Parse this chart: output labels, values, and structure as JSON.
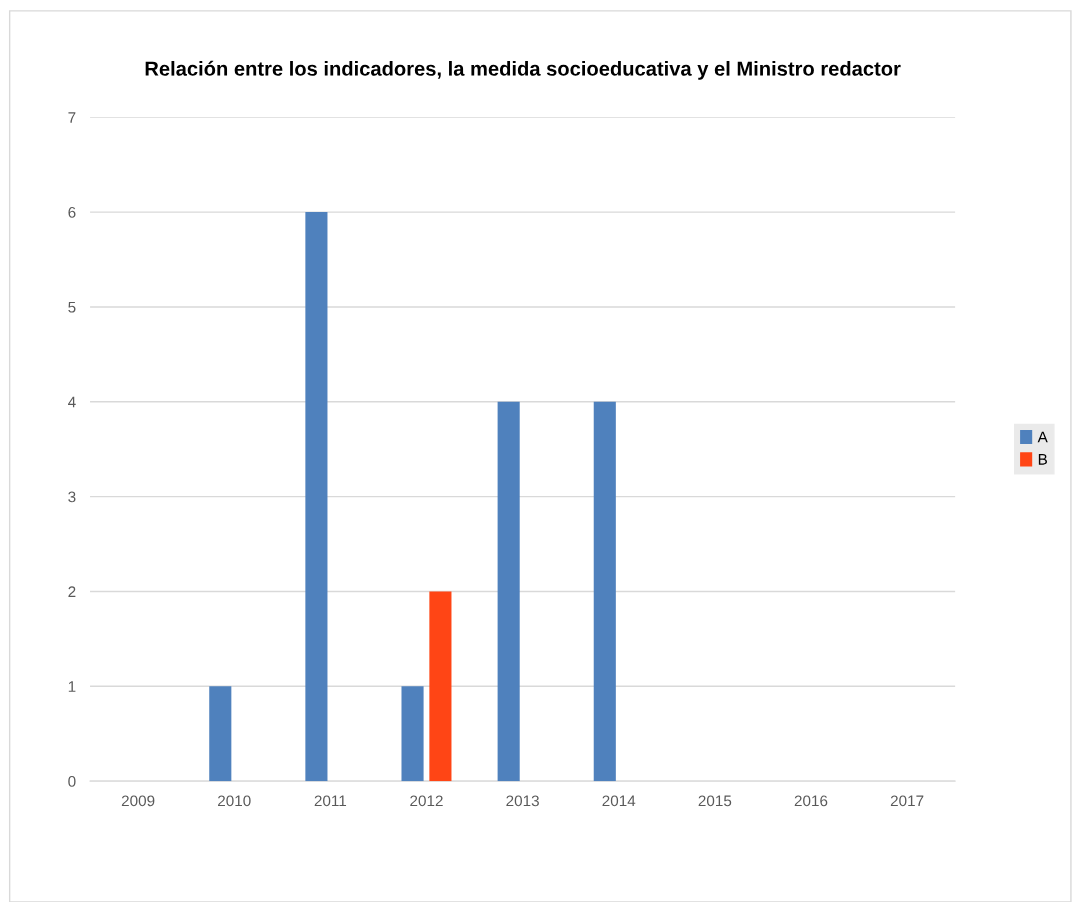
{
  "chart_data": {
    "type": "bar",
    "title": "Relación entre los indicadores, la medida socioeducativa y el Ministro redactor",
    "categories": [
      "2009",
      "2010",
      "2011",
      "2012",
      "2013",
      "2014",
      "2015",
      "2016",
      "2017"
    ],
    "series": [
      {
        "name": "A",
        "color": "#4f81bd",
        "values": [
          0,
          1,
          6,
          1,
          4,
          4,
          0,
          0,
          0
        ]
      },
      {
        "name": "B",
        "color": "#ff4515",
        "values": [
          0,
          0,
          0,
          2,
          0,
          0,
          0,
          0,
          0
        ]
      }
    ],
    "ylim": [
      0,
      7
    ],
    "yticks": [
      0,
      1,
      2,
      3,
      4,
      5,
      6,
      7
    ],
    "grid": "y",
    "legend": "right"
  }
}
